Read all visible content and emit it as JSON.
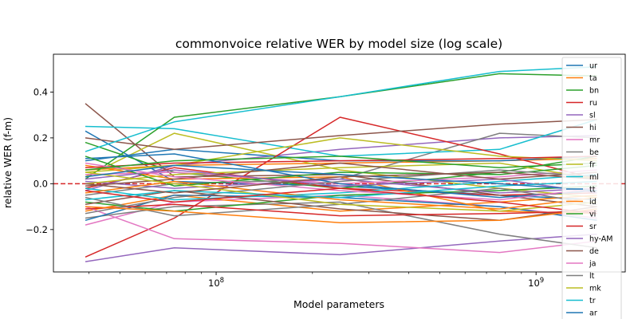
{
  "chart_data": {
    "type": "line",
    "title": "commonvoice relative WER by model size (log scale)",
    "xlabel": "Model parameters",
    "ylabel": "relative WER (f-m)",
    "xscale": "log",
    "xlim": [
      31000000,
      1900000000
    ],
    "ylim": [
      -0.385,
      0.565
    ],
    "x": [
      39000000,
      74000000,
      244000000,
      769000000,
      1550000000
    ],
    "x_ticks": [
      {
        "value": 100000000,
        "label": "10^8"
      },
      {
        "value": 1000000000,
        "label": "10^9"
      }
    ],
    "y_ticks": [
      -0.2,
      0.0,
      0.2,
      0.4
    ],
    "y_tick_labels": [
      "−0.2",
      "0.0",
      "0.2",
      "0.4"
    ],
    "reference_line": {
      "y": 0,
      "color": "#d62728",
      "style": "dashed"
    },
    "legend_position": "upper right",
    "series": [
      {
        "name": "ur",
        "color": "#1f77b4",
        "values": [
          0.23,
          0.01,
          -0.01,
          -0.05,
          -0.07
        ]
      },
      {
        "name": "ta",
        "color": "#ff7f0e",
        "values": [
          0.06,
          0.08,
          0.09,
          0.1,
          0.11
        ]
      },
      {
        "name": "bn",
        "color": "#2ca02c",
        "values": [
          0.18,
          0.05,
          -0.02,
          0.05,
          0.12
        ]
      },
      {
        "name": "ru",
        "color": "#d62728",
        "values": [
          -0.02,
          0.07,
          -0.02,
          -0.05,
          -0.04
        ]
      },
      {
        "name": "sl",
        "color": "#9467bd",
        "values": [
          -0.03,
          0.08,
          0.15,
          0.2,
          0.21
        ]
      },
      {
        "name": "hi",
        "color": "#8c564b",
        "values": [
          0.35,
          0.03,
          0.04,
          -0.05,
          -0.1
        ]
      },
      {
        "name": "mr",
        "color": "#e377c2",
        "values": [
          -0.18,
          -0.08,
          -0.05,
          -0.1,
          -0.15
        ]
      },
      {
        "name": "be",
        "color": "#7f7f7f",
        "values": [
          -0.05,
          0.0,
          0.02,
          0.22,
          0.2
        ]
      },
      {
        "name": "fr",
        "color": "#bcbd22",
        "values": [
          0.03,
          0.22,
          0.06,
          -0.02,
          -0.06
        ]
      },
      {
        "name": "ml",
        "color": "#17becf",
        "values": [
          0.25,
          0.24,
          0.12,
          0.15,
          0.28
        ]
      },
      {
        "name": "tt",
        "color": "#1f77b4",
        "values": [
          0.1,
          0.15,
          0.1,
          0.1,
          0.12
        ]
      },
      {
        "name": "id",
        "color": "#ff7f0e",
        "values": [
          -0.12,
          -0.05,
          -0.12,
          -0.08,
          -0.05
        ]
      },
      {
        "name": "vi",
        "color": "#2ca02c",
        "values": [
          0.02,
          0.29,
          0.38,
          0.48,
          0.47
        ]
      },
      {
        "name": "sr",
        "color": "#d62728",
        "values": [
          -0.32,
          -0.15,
          0.29,
          0.13,
          0.02
        ]
      },
      {
        "name": "hy-AM",
        "color": "#9467bd",
        "values": [
          -0.34,
          -0.28,
          -0.31,
          -0.25,
          -0.22
        ]
      },
      {
        "name": "de",
        "color": "#8c564b",
        "values": [
          0.2,
          0.15,
          0.21,
          0.26,
          0.28
        ]
      },
      {
        "name": "ja",
        "color": "#e377c2",
        "values": [
          -0.1,
          -0.24,
          -0.26,
          -0.3,
          -0.25
        ]
      },
      {
        "name": "lt",
        "color": "#7f7f7f",
        "values": [
          -0.15,
          -0.1,
          -0.08,
          -0.22,
          -0.28
        ]
      },
      {
        "name": "mk",
        "color": "#bcbd22",
        "values": [
          0.05,
          0.08,
          0.2,
          0.12,
          0.1
        ]
      },
      {
        "name": "tr",
        "color": "#17becf",
        "values": [
          0.14,
          0.27,
          0.38,
          0.49,
          0.51
        ]
      },
      {
        "name": "ar",
        "color": "#1f77b4",
        "values": [
          -0.16,
          -0.05,
          -0.06,
          -0.1,
          -0.16
        ]
      },
      {
        "values": [
          0.08,
          0.02,
          0.03,
          -0.12,
          -0.13
        ],
        "color": "#ff7f0e"
      },
      {
        "values": [
          -0.08,
          -0.12,
          -0.05,
          -0.03,
          -0.01
        ],
        "color": "#2ca02c"
      },
      {
        "values": [
          0.07,
          0.09,
          0.1,
          0.11,
          0.12
        ],
        "color": "#d62728"
      },
      {
        "values": [
          0.01,
          -0.02,
          0.02,
          -0.04,
          -0.02
        ],
        "color": "#9467bd"
      },
      {
        "values": [
          -0.09,
          -0.03,
          -0.11,
          -0.16,
          -0.1
        ],
        "color": "#8c564b"
      },
      {
        "values": [
          0.04,
          0.05,
          0.0,
          0.03,
          0.06
        ],
        "color": "#e377c2"
      },
      {
        "values": [
          -0.06,
          -0.14,
          -0.09,
          -0.02,
          -0.09
        ],
        "color": "#7f7f7f"
      },
      {
        "values": [
          0.0,
          0.04,
          0.07,
          0.09,
          0.02
        ],
        "color": "#bcbd22"
      },
      {
        "values": [
          -0.02,
          -0.07,
          -0.04,
          0.01,
          0.04
        ],
        "color": "#17becf"
      },
      {
        "values": [
          0.11,
          0.13,
          0.0,
          -0.06,
          -0.03
        ],
        "color": "#1f77b4"
      },
      {
        "values": [
          -0.04,
          0.01,
          -0.07,
          -0.11,
          -0.06
        ],
        "color": "#ff7f0e"
      },
      {
        "values": [
          0.12,
          -0.01,
          0.05,
          0.04,
          0.08
        ],
        "color": "#2ca02c"
      },
      {
        "values": [
          -0.11,
          -0.09,
          -0.14,
          -0.13,
          -0.12
        ],
        "color": "#d62728"
      },
      {
        "values": [
          0.02,
          0.06,
          -0.01,
          0.02,
          -0.04
        ],
        "color": "#9467bd"
      },
      {
        "values": [
          -0.01,
          0.02,
          0.09,
          0.02,
          0.05
        ],
        "color": "#8c564b"
      },
      {
        "values": [
          0.09,
          0.03,
          -0.03,
          -0.07,
          -0.02
        ],
        "color": "#e377c2"
      },
      {
        "values": [
          -0.13,
          -0.06,
          0.01,
          0.06,
          0.03
        ],
        "color": "#7f7f7f"
      },
      {
        "values": [
          0.05,
          0.0,
          -0.09,
          -0.12,
          -0.08
        ],
        "color": "#bcbd22"
      },
      {
        "values": [
          -0.07,
          -0.03,
          -0.06,
          -0.01,
          0.01
        ],
        "color": "#17becf"
      },
      {
        "values": [
          0.03,
          0.08,
          0.04,
          0.0,
          -0.03
        ],
        "color": "#1f77b4"
      },
      {
        "values": [
          -0.1,
          -0.12,
          -0.17,
          -0.16,
          -0.11
        ],
        "color": "#ff7f0e"
      },
      {
        "values": [
          0.06,
          0.1,
          0.12,
          0.07,
          0.09
        ],
        "color": "#2ca02c"
      },
      {
        "values": [
          -0.03,
          -0.08,
          -0.02,
          -0.08,
          -0.13
        ],
        "color": "#d62728"
      },
      {
        "values": [
          0.0,
          -0.04,
          0.03,
          0.05,
          0.02
        ],
        "color": "#8c564b"
      }
    ]
  }
}
